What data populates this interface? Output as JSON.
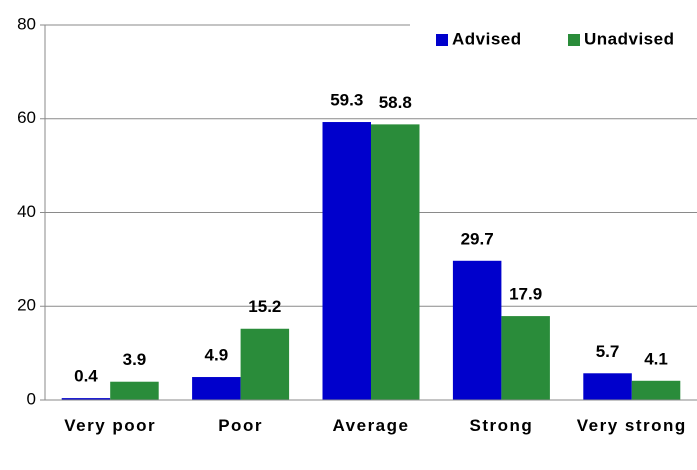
{
  "chart_data": {
    "type": "bar",
    "categories": [
      "Very poor",
      "Poor",
      "Average",
      "Strong",
      "Very strong"
    ],
    "series": [
      {
        "name": "Advised",
        "color": "#0000cc",
        "values": [
          0.4,
          4.9,
          59.3,
          29.7,
          5.7
        ]
      },
      {
        "name": "Unadvised",
        "color": "#2a8c3a",
        "values": [
          3.9,
          15.2,
          58.8,
          17.9,
          4.1
        ]
      }
    ],
    "ylim": [
      0,
      80
    ],
    "yticks": [
      0,
      20,
      40,
      60,
      80
    ],
    "grid": true,
    "legend": "top-right"
  }
}
